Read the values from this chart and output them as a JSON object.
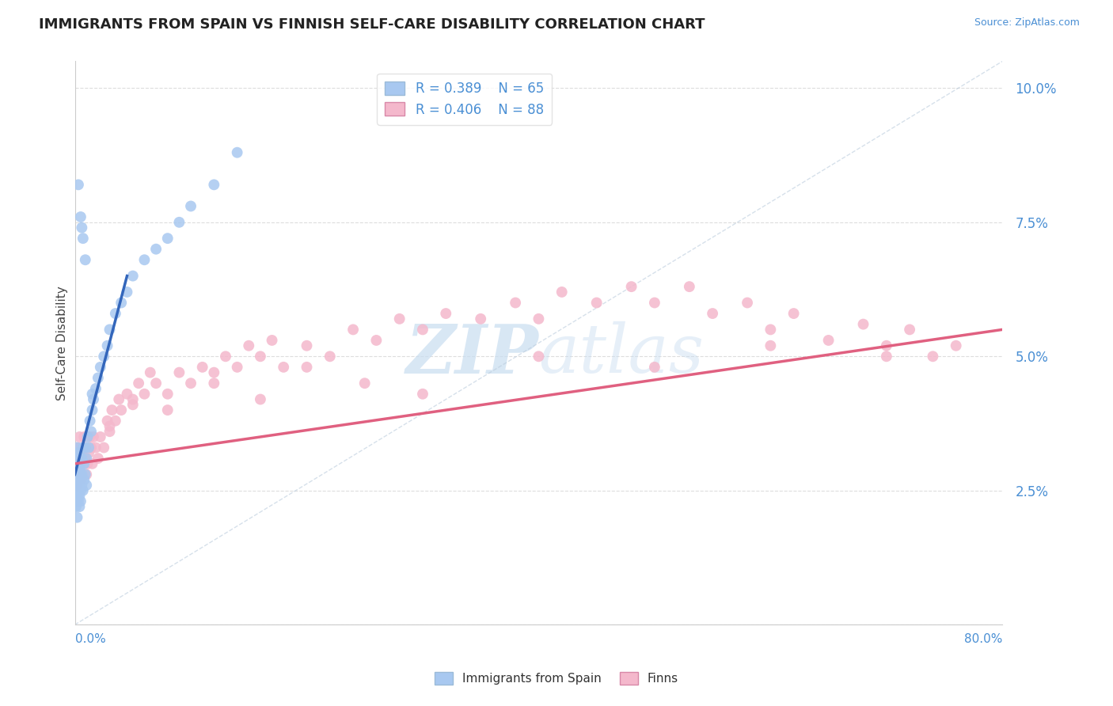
{
  "title": "IMMIGRANTS FROM SPAIN VS FINNISH SELF-CARE DISABILITY CORRELATION CHART",
  "source": "Source: ZipAtlas.com",
  "ylabel": "Self-Care Disability",
  "xlim": [
    0.0,
    0.8
  ],
  "ylim": [
    0.0,
    0.105
  ],
  "yticks": [
    0.0,
    0.025,
    0.05,
    0.075,
    0.1
  ],
  "ytick_labels": [
    "",
    "2.5%",
    "5.0%",
    "7.5%",
    "10.0%"
  ],
  "legend_r1": "R = 0.389",
  "legend_n1": "N = 65",
  "legend_r2": "R = 0.406",
  "legend_n2": "N = 88",
  "color_blue": "#a8c8f0",
  "color_pink": "#f4b8cc",
  "color_blue_line": "#3366bb",
  "color_pink_line": "#e06080",
  "color_blue_text": "#4a8fd4",
  "watermark_color": "#c8ddf0",
  "background_color": "#ffffff",
  "grid_color": "#dddddd",
  "blue_x": [
    0.001,
    0.001,
    0.001,
    0.001,
    0.001,
    0.002,
    0.002,
    0.002,
    0.002,
    0.002,
    0.002,
    0.003,
    0.003,
    0.003,
    0.003,
    0.003,
    0.004,
    0.004,
    0.004,
    0.004,
    0.004,
    0.005,
    0.005,
    0.005,
    0.005,
    0.006,
    0.006,
    0.006,
    0.007,
    0.007,
    0.008,
    0.008,
    0.009,
    0.009,
    0.01,
    0.01,
    0.011,
    0.012,
    0.013,
    0.014,
    0.015,
    0.015,
    0.016,
    0.018,
    0.02,
    0.022,
    0.025,
    0.028,
    0.03,
    0.035,
    0.04,
    0.045,
    0.05,
    0.06,
    0.07,
    0.08,
    0.09,
    0.1,
    0.12,
    0.14,
    0.005,
    0.003,
    0.007,
    0.009,
    0.006
  ],
  "blue_y": [
    0.03,
    0.028,
    0.025,
    0.032,
    0.022,
    0.033,
    0.027,
    0.024,
    0.029,
    0.031,
    0.02,
    0.026,
    0.023,
    0.028,
    0.031,
    0.025,
    0.024,
    0.029,
    0.022,
    0.027,
    0.032,
    0.025,
    0.03,
    0.028,
    0.023,
    0.026,
    0.031,
    0.028,
    0.025,
    0.033,
    0.027,
    0.03,
    0.028,
    0.033,
    0.031,
    0.026,
    0.035,
    0.033,
    0.038,
    0.036,
    0.04,
    0.043,
    0.042,
    0.044,
    0.046,
    0.048,
    0.05,
    0.052,
    0.055,
    0.058,
    0.06,
    0.062,
    0.065,
    0.068,
    0.07,
    0.072,
    0.075,
    0.078,
    0.082,
    0.088,
    0.076,
    0.082,
    0.072,
    0.068,
    0.074
  ],
  "pink_x": [
    0.001,
    0.001,
    0.002,
    0.002,
    0.003,
    0.003,
    0.004,
    0.004,
    0.005,
    0.005,
    0.006,
    0.006,
    0.007,
    0.008,
    0.008,
    0.009,
    0.01,
    0.01,
    0.011,
    0.012,
    0.013,
    0.014,
    0.015,
    0.016,
    0.018,
    0.02,
    0.022,
    0.025,
    0.028,
    0.03,
    0.032,
    0.035,
    0.038,
    0.04,
    0.045,
    0.05,
    0.055,
    0.06,
    0.065,
    0.07,
    0.08,
    0.09,
    0.1,
    0.11,
    0.12,
    0.13,
    0.14,
    0.15,
    0.16,
    0.17,
    0.18,
    0.2,
    0.22,
    0.24,
    0.26,
    0.28,
    0.3,
    0.32,
    0.35,
    0.38,
    0.4,
    0.42,
    0.45,
    0.48,
    0.5,
    0.53,
    0.55,
    0.58,
    0.6,
    0.62,
    0.65,
    0.68,
    0.7,
    0.72,
    0.74,
    0.76,
    0.03,
    0.05,
    0.08,
    0.12,
    0.16,
    0.2,
    0.25,
    0.3,
    0.4,
    0.5,
    0.6,
    0.7
  ],
  "pink_y": [
    0.028,
    0.033,
    0.031,
    0.026,
    0.033,
    0.028,
    0.035,
    0.03,
    0.027,
    0.032,
    0.03,
    0.028,
    0.033,
    0.03,
    0.035,
    0.031,
    0.028,
    0.033,
    0.03,
    0.032,
    0.035,
    0.033,
    0.03,
    0.035,
    0.033,
    0.031,
    0.035,
    0.033,
    0.038,
    0.036,
    0.04,
    0.038,
    0.042,
    0.04,
    0.043,
    0.041,
    0.045,
    0.043,
    0.047,
    0.045,
    0.043,
    0.047,
    0.045,
    0.048,
    0.047,
    0.05,
    0.048,
    0.052,
    0.05,
    0.053,
    0.048,
    0.052,
    0.05,
    0.055,
    0.053,
    0.057,
    0.055,
    0.058,
    0.057,
    0.06,
    0.057,
    0.062,
    0.06,
    0.063,
    0.06,
    0.063,
    0.058,
    0.06,
    0.055,
    0.058,
    0.053,
    0.056,
    0.052,
    0.055,
    0.05,
    0.052,
    0.037,
    0.042,
    0.04,
    0.045,
    0.042,
    0.048,
    0.045,
    0.043,
    0.05,
    0.048,
    0.052,
    0.05
  ],
  "blue_trend_x": [
    0.0,
    0.045
  ],
  "blue_trend_y": [
    0.028,
    0.065
  ],
  "pink_trend_x": [
    0.0,
    0.8
  ],
  "pink_trend_y": [
    0.03,
    0.055
  ],
  "ref_line_x": [
    0.0,
    0.8
  ],
  "ref_line_y": [
    0.0,
    0.105
  ]
}
